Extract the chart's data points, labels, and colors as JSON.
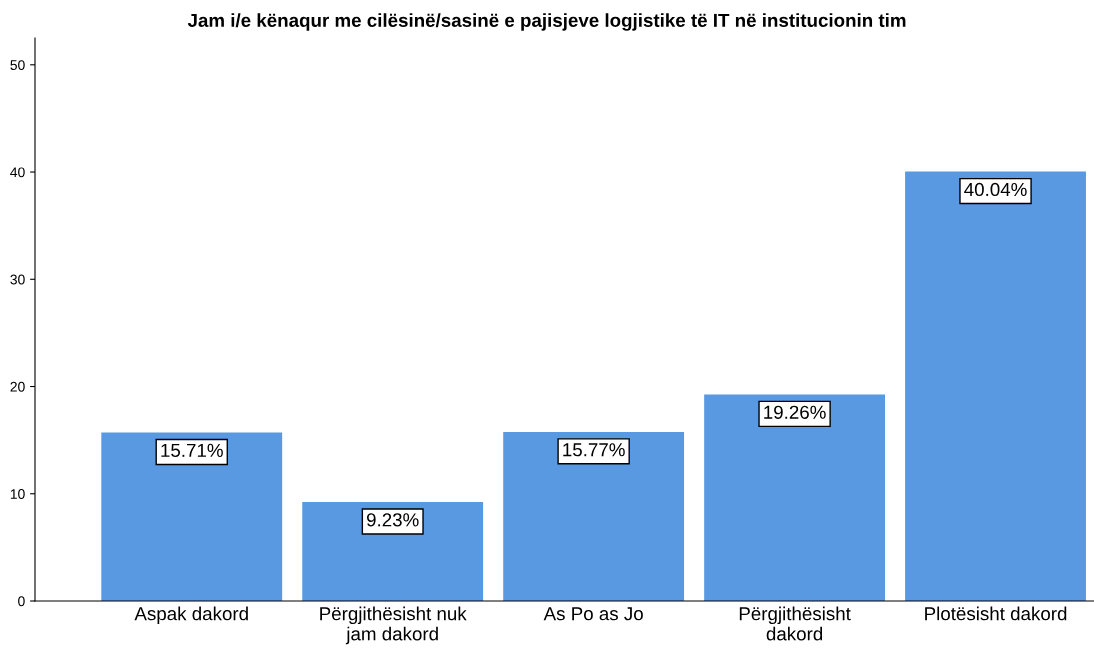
{
  "chart_data": {
    "type": "bar",
    "title": "Jam i/e kënaqur me cilësinë/sasinë e pajisjeve logjistike të IT në institucionin tim",
    "categories": [
      "Aspak dakord",
      "Përgjithësisht nuk\njam dakord",
      "As Po as Jo",
      "Përgjithësisht\ndakord",
      "Plotësisht dakord"
    ],
    "values": [
      15.71,
      9.23,
      15.77,
      19.26,
      40.04
    ],
    "value_labels": [
      "15.71%",
      "9.23%",
      "15.77%",
      "19.26%",
      "40.04%"
    ],
    "color": "#5899e2",
    "ylim": [
      0,
      52.5
    ],
    "yticks": [
      0,
      10,
      20,
      30,
      40,
      50
    ],
    "grid": false,
    "legend": false
  }
}
